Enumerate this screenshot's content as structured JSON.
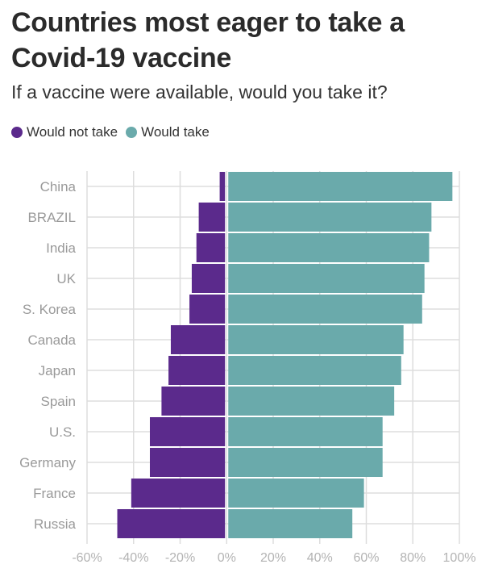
{
  "chart_data": {
    "type": "bar",
    "orientation": "horizontal",
    "stacking": "diverging",
    "title": "Countries most eager to take a Covid-19 vaccine",
    "subtitle": "If a vaccine were available, would you take it?",
    "categories": [
      "China",
      "BRAZIL",
      "India",
      "UK",
      "S. Korea",
      "Canada",
      "Japan",
      "Spain",
      "U.S.",
      "Germany",
      "France",
      "Russia"
    ],
    "series": [
      {
        "name": "Would not take",
        "color": "#5b2a8c",
        "values": [
          -3,
          -12,
          -13,
          -15,
          -16,
          -24,
          -25,
          -28,
          -33,
          -33,
          -41,
          -47
        ]
      },
      {
        "name": "Would take",
        "color": "#6aaaab",
        "values": [
          97,
          88,
          87,
          85,
          84,
          76,
          75,
          72,
          67,
          67,
          59,
          54
        ]
      }
    ],
    "xlim": [
      -60,
      100
    ],
    "x_ticks": [
      -60,
      -40,
      -20,
      0,
      20,
      40,
      60,
      80,
      100
    ],
    "x_tick_labels": [
      "-60%",
      "-40%",
      "-20%",
      "0%",
      "20%",
      "40%",
      "60%",
      "80%",
      "100%"
    ],
    "grid": true,
    "legend_position": "top-left"
  }
}
